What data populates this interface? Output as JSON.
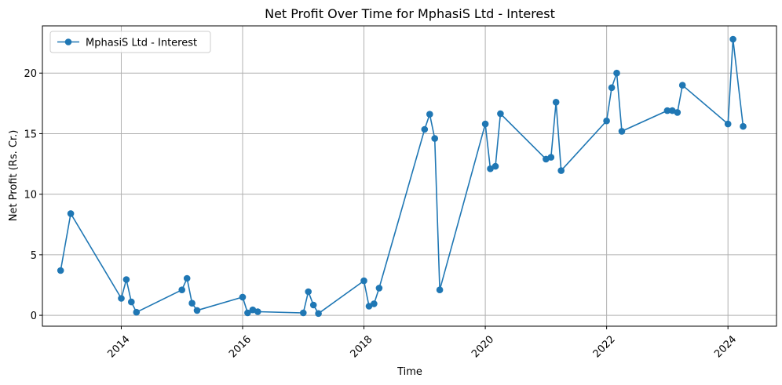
{
  "chart_data": {
    "type": "line",
    "title": "Net Profit Over Time for MphasiS Ltd - Interest",
    "xlabel": "Time",
    "ylabel": "Net Profit (Rs. Cr.)",
    "xlim": [
      2012.7,
      2024.8
    ],
    "ylim": [
      -0.9,
      23.9
    ],
    "x_ticks": [
      2014,
      2016,
      2018,
      2020,
      2022,
      2024
    ],
    "x_tick_labels": [
      "2014",
      "2016",
      "2018",
      "2020",
      "2022",
      "2024"
    ],
    "y_ticks": [
      0,
      5,
      10,
      15,
      20
    ],
    "y_tick_labels": [
      "0",
      "5",
      "10",
      "15",
      "20"
    ],
    "grid": true,
    "legend_position": "top-left",
    "colors": {
      "series": "#1f77b4",
      "grid": "#b0b0b0"
    },
    "series": [
      {
        "name": "MphasiS Ltd - Interest",
        "x": [
          "2013-01",
          "2013-03",
          "2014-01",
          "2014-02",
          "2014-03",
          "2014-04",
          "2015-01",
          "2015-02",
          "2015-03",
          "2015-04",
          "2016-01",
          "2016-02",
          "2016-03",
          "2016-04",
          "2017-01",
          "2017-02",
          "2017-03",
          "2017-04",
          "2018-01",
          "2018-02",
          "2018-03",
          "2018-04",
          "2019-01",
          "2019-02",
          "2019-03",
          "2019-04",
          "2020-01",
          "2020-02",
          "2020-03",
          "2020-04",
          "2021-01",
          "2021-02",
          "2021-03",
          "2021-04",
          "2022-01",
          "2022-02",
          "2022-03",
          "2022-04",
          "2023-01",
          "2023-02",
          "2023-03",
          "2023-04",
          "2024-01",
          "2024-02",
          "2024-04"
        ],
        "values": [
          3.7,
          8.4,
          1.4,
          2.95,
          1.1,
          0.25,
          2.1,
          3.05,
          1.0,
          0.4,
          1.5,
          0.2,
          0.45,
          0.3,
          0.2,
          1.95,
          0.85,
          0.15,
          2.85,
          0.75,
          0.95,
          2.25,
          15.35,
          16.6,
          14.6,
          2.1,
          15.8,
          12.1,
          12.3,
          16.65,
          12.9,
          13.05,
          17.6,
          11.95,
          16.05,
          18.8,
          20.0,
          15.2,
          16.9,
          16.9,
          16.75,
          19.0,
          15.8,
          22.8,
          15.6
        ]
      }
    ]
  }
}
